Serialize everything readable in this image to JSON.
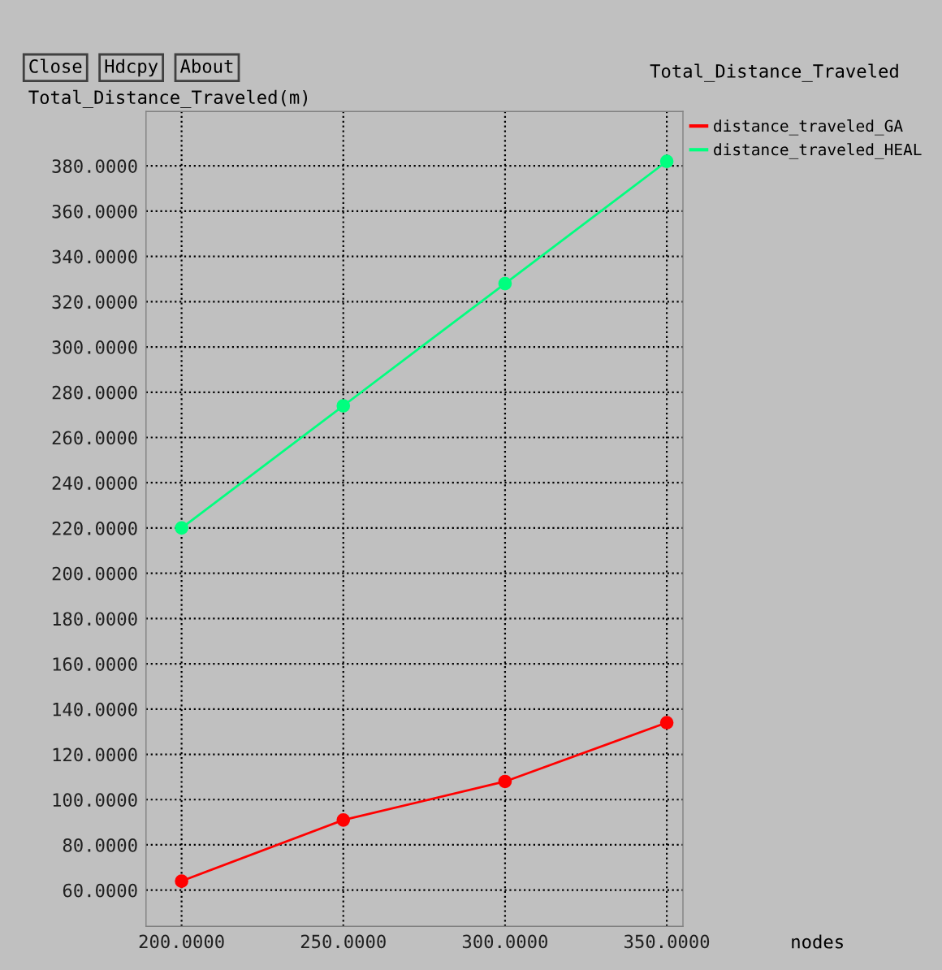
{
  "chart_data": {
    "type": "line",
    "title": "Total_Distance_Traveled",
    "ylabel": "Total_Distance_Traveled(m)",
    "xlabel": "nodes",
    "annotations": [
      "Close",
      "Hdcpy",
      "About"
    ],
    "x": [
      200,
      250,
      300,
      350
    ],
    "series": [
      {
        "name": "distance_traveled_GA",
        "color": "#ff0000",
        "values": [
          64,
          91,
          108,
          134
        ]
      },
      {
        "name": "distance_traveled_HEAL",
        "color": "#00ff7f",
        "values": [
          220,
          274,
          328,
          382
        ]
      }
    ],
    "xlim": [
      189,
      355
    ],
    "ylim": [
      44,
      404
    ],
    "xticks": [
      {
        "value": 200,
        "label": "200.0000"
      },
      {
        "value": 250,
        "label": "250.0000"
      },
      {
        "value": 300,
        "label": "300.0000"
      },
      {
        "value": 350,
        "label": "350.0000"
      }
    ],
    "yticks": [
      {
        "value": 60,
        "label": "60.0000"
      },
      {
        "value": 80,
        "label": "80.0000"
      },
      {
        "value": 100,
        "label": "100.0000"
      },
      {
        "value": 120,
        "label": "120.0000"
      },
      {
        "value": 140,
        "label": "140.0000"
      },
      {
        "value": 160,
        "label": "160.0000"
      },
      {
        "value": 180,
        "label": "180.0000"
      },
      {
        "value": 200,
        "label": "200.0000"
      },
      {
        "value": 220,
        "label": "220.0000"
      },
      {
        "value": 240,
        "label": "240.0000"
      },
      {
        "value": 260,
        "label": "260.0000"
      },
      {
        "value": 280,
        "label": "280.0000"
      },
      {
        "value": 300,
        "label": "300.0000"
      },
      {
        "value": 320,
        "label": "320.0000"
      },
      {
        "value": 340,
        "label": "340.0000"
      },
      {
        "value": 360,
        "label": "360.0000"
      },
      {
        "value": 380,
        "label": "380.0000"
      }
    ],
    "grid": true,
    "legend": "top right",
    "marker": "circle",
    "line_style": "solid"
  }
}
